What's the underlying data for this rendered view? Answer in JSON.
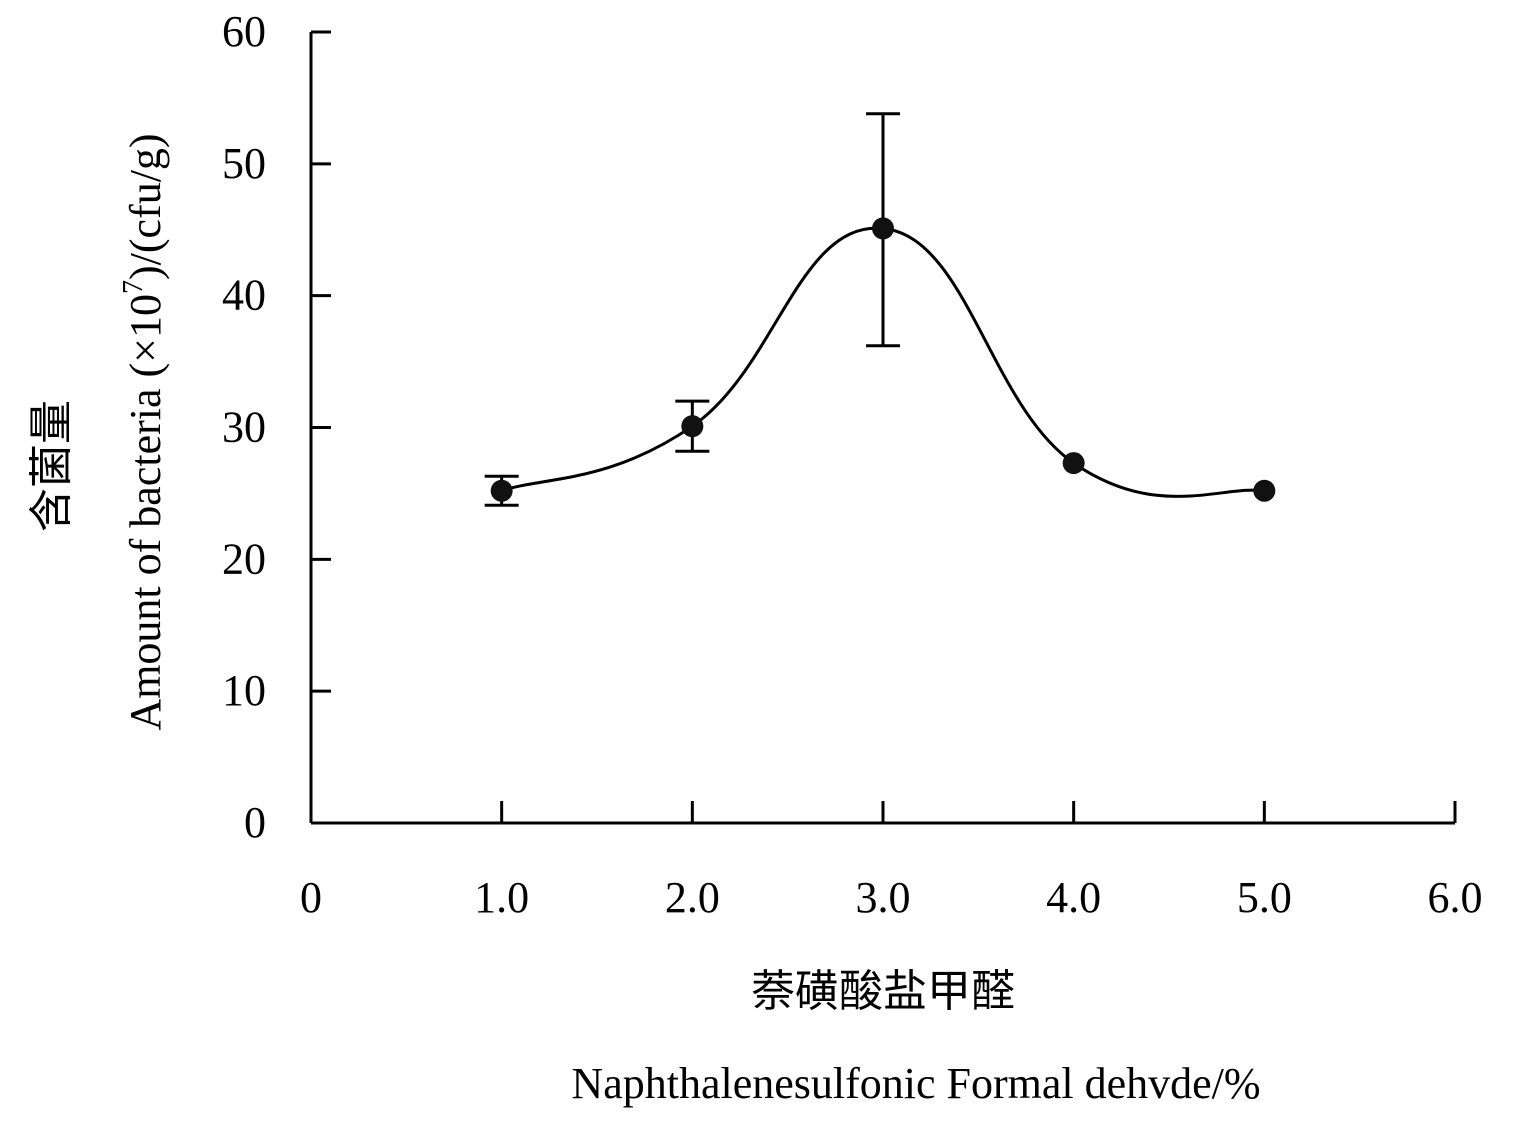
{
  "chart_data": {
    "type": "line",
    "x": [
      1.0,
      2.0,
      3.0,
      4.0,
      5.0
    ],
    "series": [
      {
        "values": [
          25.2,
          30.1,
          45.1,
          27.3,
          25.2
        ],
        "error_low": [
          24.1,
          28.2,
          36.2,
          27.3,
          25.2
        ],
        "error_high": [
          26.3,
          32.0,
          53.8,
          27.3,
          25.2
        ]
      }
    ],
    "xlim": [
      0,
      6
    ],
    "ylim": [
      0,
      60
    ],
    "x_ticks": [
      0,
      1.0,
      2.0,
      3.0,
      4.0,
      5.0,
      6.0
    ],
    "x_tick_labels": [
      "0",
      "1.0",
      "2.0",
      "3.0",
      "4.0",
      "5.0",
      "6.0"
    ],
    "y_ticks": [
      0,
      10,
      20,
      30,
      40,
      50,
      60
    ],
    "y_tick_labels": [
      "0",
      "10",
      "20",
      "30",
      "40",
      "50",
      "60"
    ],
    "xlabel_cn": "萘磺酸盐甲醛",
    "xlabel_en": "Naphthalenesulfonic Formal dehvde/%",
    "ylabel_cn": "含菌量",
    "ylabel_en_prefix": "Amount of bacteria (×10",
    "ylabel_en_sup": "7",
    "ylabel_en_suffix": ")/(cfu/g)",
    "grid": false,
    "legend": false,
    "marker_color": "#111111",
    "line_color": "#000000"
  }
}
